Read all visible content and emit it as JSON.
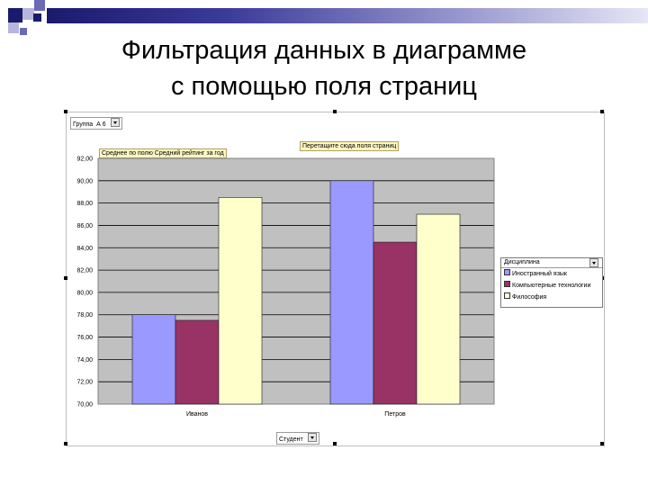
{
  "slide": {
    "title_line1": "Фильтрация данных в диаграмме",
    "title_line2": "с помощью поля страниц"
  },
  "pivot": {
    "page_field_label": "Группа",
    "page_field_value": "А 6",
    "data_field_label": "Среднее по полю Средний рейтинг за год",
    "drop_zone_label": "Перетащите сюда поля страниц",
    "category_field_label": "Студент",
    "series_field_label": "Дисциплина"
  },
  "chart_data": {
    "type": "bar",
    "categories": [
      "Иванов",
      "Петров"
    ],
    "series": [
      {
        "name": "Иностранный язык",
        "color": "#9999ff",
        "values": [
          78.0,
          90.0
        ]
      },
      {
        "name": "Компьютерные технологии",
        "color": "#993366",
        "values": [
          77.5,
          84.5
        ]
      },
      {
        "name": "Философия",
        "color": "#ffffcc",
        "values": [
          88.5,
          87.0
        ]
      }
    ],
    "ylim": [
      70,
      92
    ],
    "yticks": [
      "70,00",
      "72,00",
      "74,00",
      "76,00",
      "78,00",
      "80,00",
      "82,00",
      "84,00",
      "86,00",
      "88,00",
      "90,00",
      "92,00"
    ],
    "plot_background": "#c0c0c0",
    "grid": true,
    "legend_position": "right"
  }
}
